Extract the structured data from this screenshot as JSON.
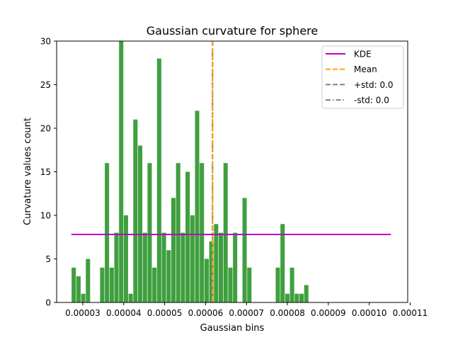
{
  "chart_data": {
    "type": "bar",
    "title": "Gaussian curvature for sphere",
    "xlabel": "Gaussian bins",
    "ylabel": "Curvature values count",
    "xlim": [
      2.36e-05,
      0.0001094
    ],
    "ylim": [
      0,
      30
    ],
    "x_ticks": [
      3e-05,
      4e-05,
      5e-05,
      6e-05,
      7e-05,
      8e-05,
      9e-05,
      0.0001,
      0.00011
    ],
    "x_tick_labels": [
      "0.00003",
      "0.00004",
      "0.00005",
      "0.00006",
      "0.00007",
      "0.00008",
      "0.00009",
      "0.00010",
      "0.00011"
    ],
    "y_ticks": [
      0,
      5,
      10,
      15,
      20,
      25,
      30
    ],
    "y_tick_labels": [
      "0",
      "5",
      "10",
      "15",
      "20",
      "25",
      "30"
    ],
    "bins": {
      "start": 2.72e-05,
      "width": 1.16e-06,
      "counts": [
        4,
        3,
        1,
        5,
        0,
        0,
        4,
        16,
        4,
        8,
        30,
        10,
        1,
        21,
        18,
        8,
        16,
        4,
        28,
        8,
        6,
        12,
        16,
        8,
        15,
        10,
        22,
        16,
        5,
        7,
        9,
        8,
        16,
        4,
        8,
        0,
        12,
        4,
        0,
        0,
        0,
        0,
        0,
        4,
        9,
        1,
        4,
        1,
        1,
        2
      ]
    },
    "bar_color": "#3f9f3f",
    "grid": false,
    "legend_position": "top-right",
    "series": [
      {
        "name": "KDE",
        "style": "solid",
        "color": "#bf00bf",
        "y": 7.8,
        "x_range": [
          2.72e-05,
          0.0001053
        ]
      },
      {
        "name": "Mean",
        "style": "dashed",
        "color": "#ffa500",
        "x": 6.17e-05
      },
      {
        "name": "+std: 0.0",
        "style": "dashed",
        "color": "#808080",
        "x": 6.17e-05
      },
      {
        "name": "-std: 0.0",
        "style": "dashdot",
        "color": "#808080",
        "x": 6.17e-05
      }
    ]
  }
}
